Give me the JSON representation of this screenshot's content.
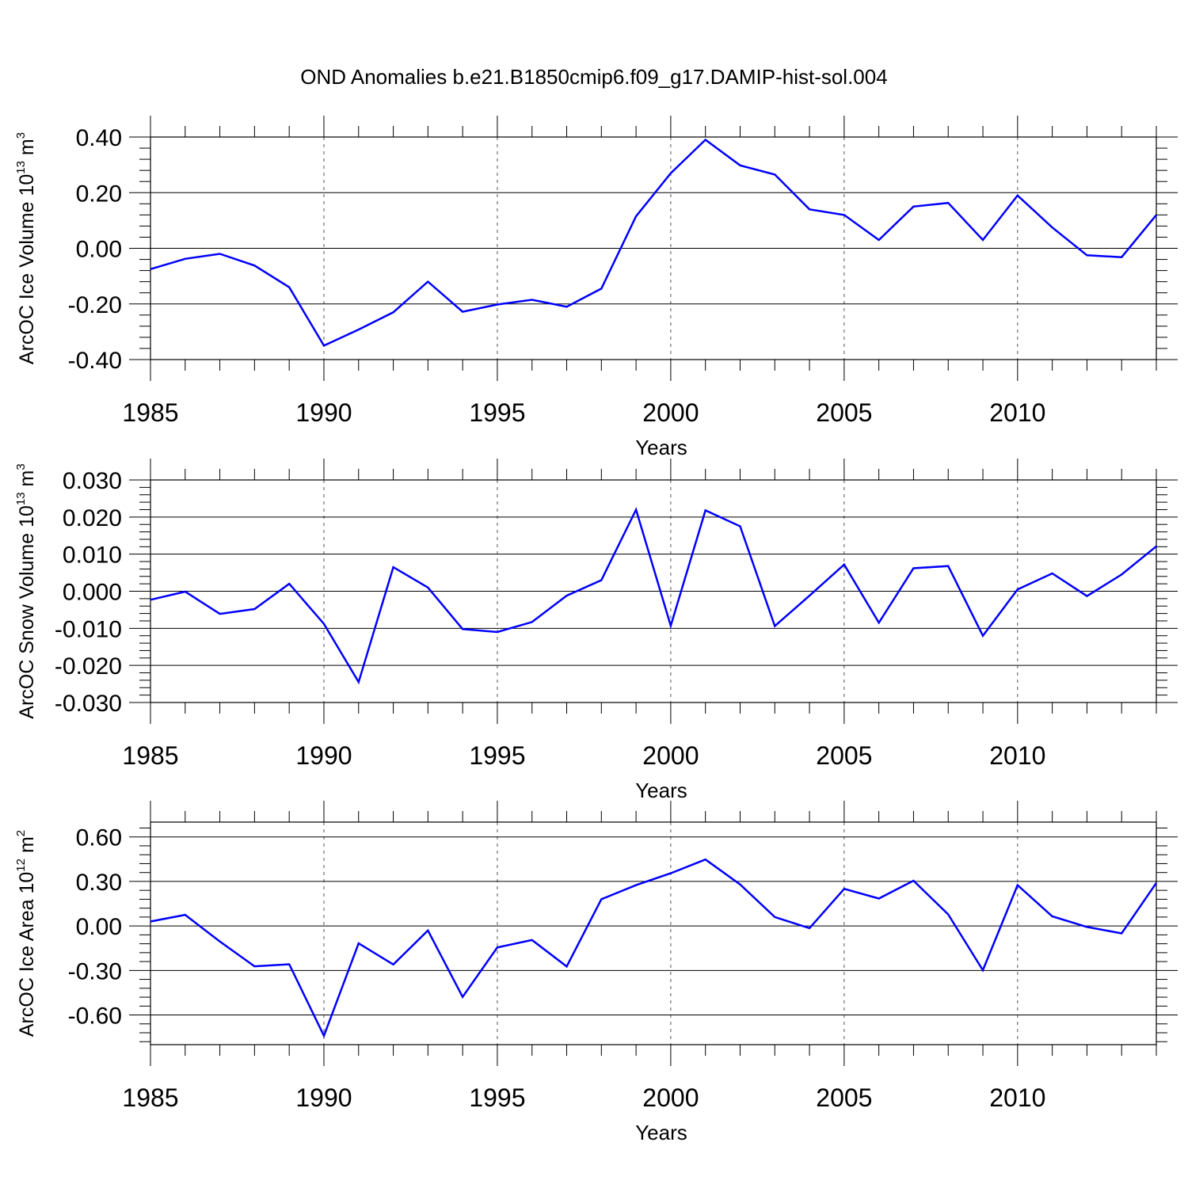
{
  "title": "OND Anomalies b.e21.B1850cmip6.f09_g17.DAMIP-hist-sol.004",
  "chart_data": [
    {
      "type": "line",
      "xlabel": "Years",
      "ylabel": "ArcOC Ice Volume 10",
      "ylabel_exp": "13",
      "ylabel_unit": "m",
      "ylabel_unit_exp": "3",
      "xlim": [
        1985,
        2014
      ],
      "ylim": [
        -0.4,
        0.4
      ],
      "yticks": [
        -0.4,
        -0.2,
        0.0,
        0.2,
        0.4
      ],
      "ytick_labels": [
        "-0.40",
        "-0.20",
        "0.00",
        "0.20",
        "0.40"
      ],
      "xticks": [
        1985,
        1990,
        1995,
        2000,
        2005,
        2010
      ],
      "xtick_labels": [
        "1985",
        "1990",
        "1995",
        "2000",
        "2005",
        "2010"
      ],
      "grid_x": [
        1990,
        1995,
        2000,
        2005,
        2010
      ],
      "color": "#0000ff",
      "x": [
        1985,
        1986,
        1987,
        1988,
        1989,
        1990,
        1991,
        1992,
        1993,
        1994,
        1995,
        1996,
        1997,
        1998,
        1999,
        2000,
        2001,
        2002,
        2003,
        2004,
        2005,
        2006,
        2007,
        2008,
        2009,
        2010,
        2011,
        2012,
        2013,
        2014
      ],
      "values": [
        -0.075,
        -0.038,
        -0.02,
        -0.062,
        -0.14,
        -0.35,
        -0.292,
        -0.23,
        -0.12,
        -0.228,
        -0.202,
        -0.185,
        -0.21,
        -0.145,
        0.115,
        0.27,
        0.39,
        0.298,
        0.265,
        0.14,
        0.12,
        0.03,
        0.15,
        0.163,
        0.03,
        0.19,
        0.075,
        -0.025,
        -0.032,
        0.12
      ]
    },
    {
      "type": "line",
      "xlabel": "Years",
      "ylabel": "ArcOC Snow Volume 10",
      "ylabel_exp": "13",
      "ylabel_unit": "m",
      "ylabel_unit_exp": "3",
      "xlim": [
        1985,
        2014
      ],
      "ylim": [
        -0.03,
        0.03
      ],
      "yticks": [
        -0.03,
        -0.02,
        -0.01,
        0.0,
        0.01,
        0.02,
        0.03
      ],
      "ytick_labels": [
        "-0.030",
        "-0.020",
        "-0.010",
        "0.000",
        "0.010",
        "0.020",
        "0.030"
      ],
      "xticks": [
        1985,
        1990,
        1995,
        2000,
        2005,
        2010
      ],
      "xtick_labels": [
        "1985",
        "1990",
        "1995",
        "2000",
        "2005",
        "2010"
      ],
      "grid_x": [
        1990,
        1995,
        2000,
        2005,
        2010
      ],
      "color": "#0000ff",
      "x": [
        1985,
        1986,
        1987,
        1988,
        1989,
        1990,
        1991,
        1992,
        1993,
        1994,
        1995,
        1996,
        1997,
        1998,
        1999,
        2000,
        2001,
        2002,
        2003,
        2004,
        2005,
        2006,
        2007,
        2008,
        2009,
        2010,
        2011,
        2012,
        2013,
        2014
      ],
      "values": [
        -0.0023,
        -0.0001,
        -0.0061,
        -0.0048,
        0.002,
        -0.0088,
        -0.0245,
        0.0065,
        0.001,
        -0.0102,
        -0.011,
        -0.0083,
        -0.0012,
        0.003,
        0.022,
        -0.0093,
        0.0218,
        0.0175,
        -0.0094,
        -0.0012,
        0.0072,
        -0.0085,
        0.0062,
        0.0068,
        -0.012,
        0.0005,
        0.0048,
        -0.0013,
        0.0045,
        0.0121
      ]
    },
    {
      "type": "line",
      "xlabel": "Years",
      "ylabel": "ArcOC Ice Area 10",
      "ylabel_exp": "12",
      "ylabel_unit": "m",
      "ylabel_unit_exp": "2",
      "xlim": [
        1985,
        2014
      ],
      "ylim": [
        -0.8,
        0.7
      ],
      "yticks": [
        -0.6,
        -0.3,
        0.0,
        0.3,
        0.6
      ],
      "ytick_labels": [
        "-0.60",
        "-0.30",
        "0.00",
        "0.30",
        "0.60"
      ],
      "xticks": [
        1985,
        1990,
        1995,
        2000,
        2005,
        2010
      ],
      "xtick_labels": [
        "1985",
        "1990",
        "1995",
        "2000",
        "2005",
        "2010"
      ],
      "grid_x": [
        1990,
        1995,
        2000,
        2005,
        2010
      ],
      "color": "#0000ff",
      "x": [
        1985,
        1986,
        1987,
        1988,
        1989,
        1990,
        1991,
        1992,
        1993,
        1994,
        1995,
        1996,
        1997,
        1998,
        1999,
        2000,
        2001,
        2002,
        2003,
        2004,
        2005,
        2006,
        2007,
        2008,
        2009,
        2010,
        2011,
        2012,
        2013,
        2014
      ],
      "values": [
        0.03,
        0.075,
        -0.105,
        -0.272,
        -0.258,
        -0.74,
        -0.117,
        -0.26,
        -0.03,
        -0.478,
        -0.145,
        -0.095,
        -0.273,
        0.18,
        0.275,
        0.355,
        0.448,
        0.28,
        0.06,
        -0.015,
        0.25,
        0.185,
        0.305,
        0.078,
        -0.298,
        0.275,
        0.065,
        -0.007,
        -0.05,
        0.29
      ]
    }
  ]
}
